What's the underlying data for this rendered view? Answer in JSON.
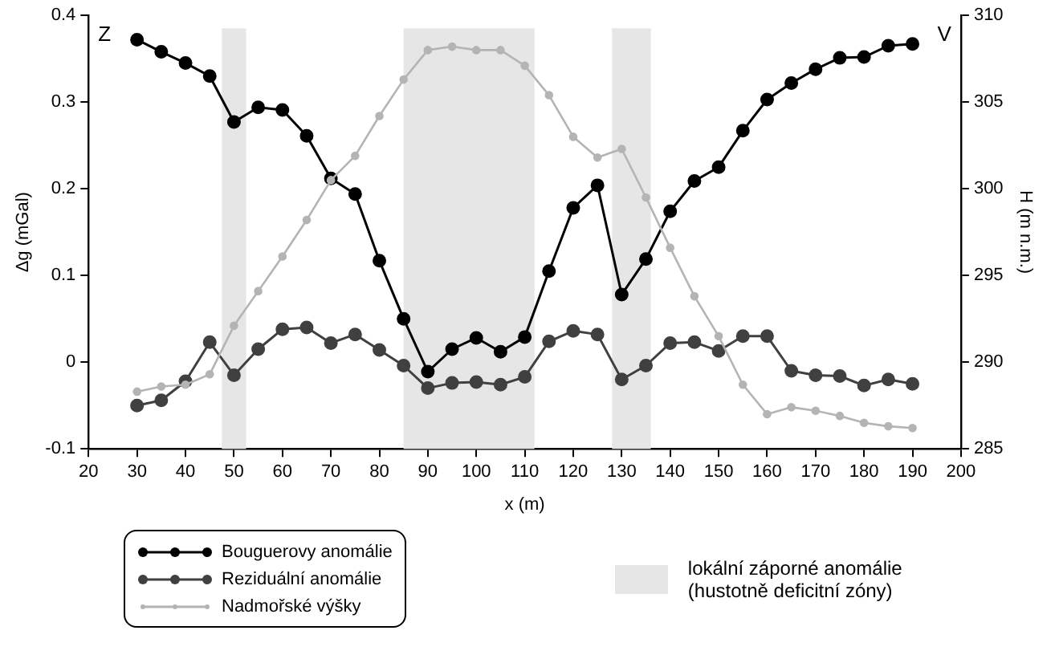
{
  "chart_data": {
    "type": "line",
    "xlabel": "x (m)",
    "ylabel": "Δg (mGal)",
    "y2label": "H (m n.m.)",
    "x": [
      30,
      35,
      40,
      45,
      50,
      55,
      60,
      65,
      70,
      75,
      80,
      85,
      90,
      95,
      100,
      105,
      110,
      115,
      120,
      125,
      130,
      135,
      140,
      145,
      150,
      155,
      160,
      165,
      170,
      175,
      180,
      185,
      190
    ],
    "series": [
      {
        "name": "Bouguerovy anomálie",
        "color": "#000000",
        "values": [
          0.372,
          0.358,
          0.345,
          0.33,
          0.277,
          0.294,
          0.291,
          0.261,
          0.212,
          0.194,
          0.117,
          0.05,
          -0.011,
          0.015,
          0.028,
          0.012,
          0.029,
          0.105,
          0.178,
          0.204,
          0.078,
          0.119,
          0.174,
          0.209,
          0.225,
          0.267,
          0.303,
          0.322,
          0.338,
          0.351,
          0.352,
          0.365,
          0.367
        ]
      },
      {
        "name": "Reziduální anomálie",
        "color": "#404040",
        "values": [
          -0.05,
          -0.044,
          -0.022,
          0.023,
          -0.015,
          0.015,
          0.038,
          0.04,
          0.022,
          0.032,
          0.014,
          -0.004,
          -0.03,
          -0.024,
          -0.023,
          -0.026,
          -0.017,
          0.024,
          0.036,
          0.032,
          -0.02,
          -0.004,
          0.022,
          0.023,
          0.013,
          0.03,
          0.03,
          -0.01,
          -0.015,
          -0.016,
          -0.027,
          -0.02,
          -0.025
        ]
      },
      {
        "name": "Nadmořské výšky",
        "color": "#b4b4b4",
        "axis": "y2",
        "values": [
          288.3,
          288.6,
          288.7,
          289.3,
          292.1,
          294.1,
          296.1,
          298.2,
          300.5,
          301.9,
          304.2,
          306.3,
          308.0,
          308.2,
          308.0,
          308.0,
          307.1,
          305.4,
          303.0,
          301.8,
          302.3,
          299.5,
          296.6,
          293.8,
          291.5,
          288.7,
          287.0,
          287.4,
          287.2,
          286.9,
          286.5,
          286.3,
          286.2
        ]
      }
    ],
    "xlim": [
      20,
      200
    ],
    "xticks": [
      20,
      30,
      40,
      50,
      60,
      70,
      80,
      90,
      100,
      110,
      120,
      130,
      140,
      150,
      160,
      170,
      180,
      190,
      200
    ],
    "ylim": [
      -0.1,
      0.4
    ],
    "yticks": [
      -0.1,
      0,
      0.1,
      0.2,
      0.3,
      0.4
    ],
    "y2lim": [
      285,
      310
    ],
    "y2ticks": [
      285,
      290,
      295,
      300,
      305,
      310
    ],
    "bands": [
      {
        "axis": "x",
        "from": 47.5,
        "to": 52.5,
        "label": "lokální záporné anomálie (hustotně deficitní zóny)",
        "color": "#e6e6e6"
      },
      {
        "axis": "x",
        "from": 85,
        "to": 112,
        "color": "#e6e6e6"
      },
      {
        "axis": "x",
        "from": 128,
        "to": 136,
        "color": "#e6e6e6"
      }
    ],
    "annotations": [
      "Z",
      "V"
    ],
    "grid": false,
    "legend": "bottom",
    "marker": "circle",
    "line_style": "solid"
  }
}
